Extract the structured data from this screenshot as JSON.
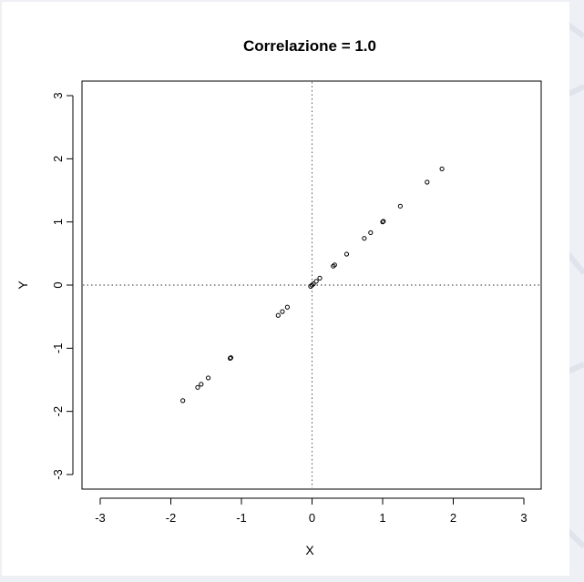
{
  "colors": {
    "page_background": "#eef0f5",
    "panel_background": "#ffffff",
    "points": "#000000",
    "reference_lines": "#555555"
  },
  "chart_data": {
    "type": "scatter",
    "title": "Correlazione = 1.0",
    "xlabel": "X",
    "ylabel": "Y",
    "xlim": [
      -3.2,
      3.2
    ],
    "ylim": [
      -3.2,
      3.2
    ],
    "xticks": [
      -3,
      -2,
      -1,
      0,
      1,
      2,
      3
    ],
    "yticks": [
      -3,
      -2,
      -1,
      0,
      1,
      2,
      3
    ],
    "grid": false,
    "reference_lines": {
      "x": 0,
      "y": 0,
      "style": "dotted"
    },
    "marker": "open-circle",
    "series": [
      {
        "x": [
          -1.83,
          -1.62,
          -1.57,
          -1.47,
          -1.16,
          -1.15,
          -0.48,
          -0.42,
          -0.35,
          -0.02,
          0.0,
          0.02,
          0.06,
          0.11,
          0.3,
          0.32,
          0.49,
          0.74,
          0.83,
          1.0,
          1.01,
          1.25,
          1.63,
          1.84
        ],
        "y": [
          -1.83,
          -1.62,
          -1.57,
          -1.47,
          -1.16,
          -1.15,
          -0.48,
          -0.42,
          -0.35,
          -0.02,
          0.0,
          0.02,
          0.06,
          0.11,
          0.3,
          0.32,
          0.49,
          0.74,
          0.83,
          1.0,
          1.01,
          1.25,
          1.63,
          1.84
        ]
      }
    ]
  }
}
